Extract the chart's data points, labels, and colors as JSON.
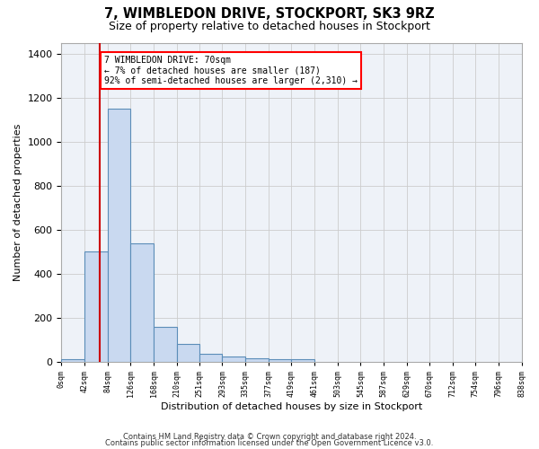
{
  "title": "7, WIMBLEDON DRIVE, STOCKPORT, SK3 9RZ",
  "subtitle": "Size of property relative to detached houses in Stockport",
  "xlabel": "Distribution of detached houses by size in Stockport",
  "ylabel": "Number of detached properties",
  "bin_edges": [
    0,
    42,
    84,
    126,
    168,
    210,
    251,
    293,
    335,
    377,
    419,
    461,
    503,
    545,
    587,
    629,
    670,
    712,
    754,
    796,
    838
  ],
  "bar_heights": [
    10,
    500,
    1150,
    540,
    160,
    80,
    35,
    25,
    15,
    10,
    10,
    0,
    0,
    0,
    0,
    0,
    0,
    0,
    0,
    0
  ],
  "bar_color": "#c9d9f0",
  "bar_edge_color": "#5b8db8",
  "grid_color": "#cccccc",
  "background_color": "#eef2f8",
  "property_size": 70,
  "red_line_color": "#cc0000",
  "annotation_text": "7 WIMBLEDON DRIVE: 70sqm\n← 7% of detached houses are smaller (187)\n92% of semi-detached houses are larger (2,310) →",
  "footer_line1": "Contains HM Land Registry data © Crown copyright and database right 2024.",
  "footer_line2": "Contains public sector information licensed under the Open Government Licence v3.0.",
  "ylim": [
    0,
    1450
  ],
  "yticks": [
    0,
    200,
    400,
    600,
    800,
    1000,
    1200,
    1400
  ]
}
